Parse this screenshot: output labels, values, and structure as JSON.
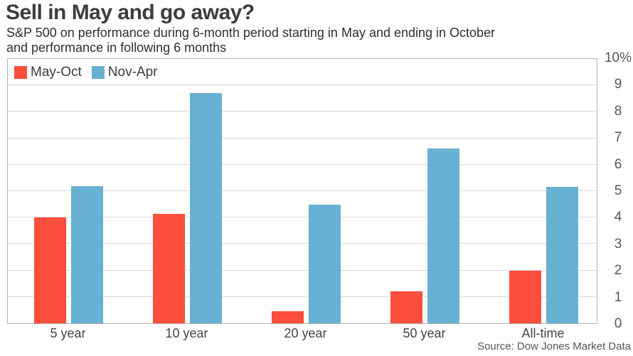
{
  "header": {
    "title": "Sell in May and go away?",
    "subtitle_line1": "S&P 500 on performance during 6-month period starting in May and ending in October",
    "subtitle_line2": "and performance in following 6 months"
  },
  "source": "Source: Dow Jones Market Data",
  "colors": {
    "may_oct": "#fb4e3c",
    "nov_apr": "#68b1d3",
    "gridline": "#d9d9da",
    "plot_border": "#b2b2b5",
    "title_text": "#3d3d3d",
    "axis_text": "#55565a"
  },
  "chart_data": {
    "type": "bar",
    "categories": [
      "5 year",
      "10 year",
      "20 year",
      "50 year",
      "All-time"
    ],
    "series": [
      {
        "name": "May-Oct",
        "color": "#fb4e3c",
        "values": [
          4.0,
          4.15,
          0.45,
          1.2,
          2.0
        ]
      },
      {
        "name": "Nov-Apr",
        "color": "#68b1d3",
        "values": [
          5.2,
          8.7,
          4.5,
          6.6,
          5.15
        ]
      }
    ],
    "title": "Sell in May and go away?",
    "xlabel": "",
    "ylabel": "",
    "ylim": [
      0,
      10
    ],
    "yticks": [
      "10%",
      "9",
      "8",
      "7",
      "6",
      "5",
      "4",
      "3",
      "2",
      "1",
      "0"
    ],
    "grid": true,
    "legend_position": "top-left",
    "y_axis_side": "right"
  }
}
